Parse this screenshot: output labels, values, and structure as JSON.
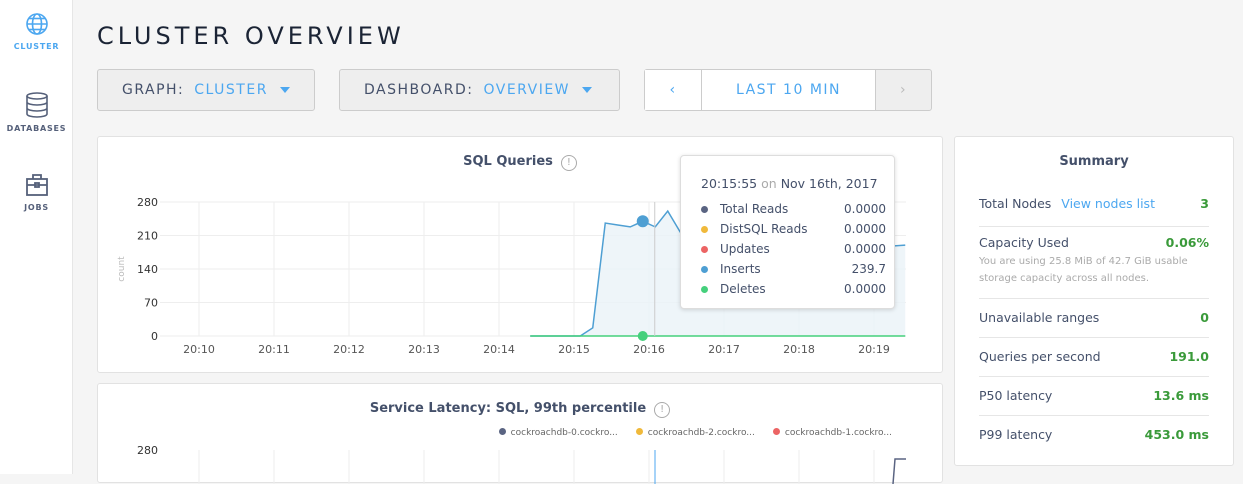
{
  "sidebar": {
    "items": [
      {
        "label": "CLUSTER",
        "icon": "globe-icon",
        "active": true
      },
      {
        "label": "DATABASES",
        "icon": "database-icon"
      },
      {
        "label": "JOBS",
        "icon": "briefcase-icon"
      }
    ]
  },
  "page_title": "CLUSTER OVERVIEW",
  "toolbar": {
    "graph_label": "GRAPH:",
    "graph_value": "CLUSTER",
    "dashboard_label": "DASHBOARD:",
    "dashboard_value": "OVERVIEW",
    "time_range": "LAST 10 MIN",
    "prev_icon": "chevron-left-icon",
    "next_icon": "chevron-right-icon"
  },
  "colors": {
    "accent": "#4ca7f0",
    "total_reads": "#5a6482",
    "distsql_reads": "#f0b93b",
    "updates": "#ec6464",
    "inserts": "#4e9fd3",
    "deletes": "#45d07c",
    "good": "#3a9a3a"
  },
  "chart_data": [
    {
      "type": "area",
      "title": "SQL Queries",
      "ylabel": "count",
      "ylim": [
        0,
        280
      ],
      "yticks": [
        "0",
        "70",
        "140",
        "210",
        "280"
      ],
      "xticks": [
        "20:10",
        "20:11",
        "20:12",
        "20:13",
        "20:14",
        "20:15",
        "20:16",
        "20:17",
        "20:18",
        "20:19"
      ],
      "grid": true,
      "x": [
        "20:14:25",
        "20:14:35",
        "20:14:45",
        "20:14:55",
        "20:15:05",
        "20:15:15",
        "20:15:25",
        "20:15:35",
        "20:15:45",
        "20:15:55",
        "20:16:05",
        "20:16:15",
        "20:16:25",
        "20:16:35",
        "20:16:45",
        "20:16:55",
        "20:17:05",
        "20:17:15",
        "20:17:25",
        "20:17:35",
        "20:17:45",
        "20:17:55",
        "20:18:05",
        "20:18:15",
        "20:18:25",
        "20:18:35",
        "20:18:45",
        "20:18:55",
        "20:19:05",
        "20:19:15",
        "20:19:25"
      ],
      "series": [
        {
          "name": "Inserts",
          "values": [
            0,
            0,
            0,
            0,
            0,
            17,
            236,
            232,
            228,
            239.7,
            228,
            261,
            217,
            200,
            230,
            265,
            240,
            220,
            235,
            250,
            240,
            225,
            245,
            255,
            235,
            230,
            240,
            260,
            225,
            188,
            190
          ]
        },
        {
          "name": "Deletes",
          "values": [
            0,
            0,
            0,
            0,
            0,
            0,
            0,
            0,
            0,
            0,
            0,
            0,
            0,
            0,
            0,
            0,
            0,
            0,
            0,
            0,
            0,
            0,
            0,
            0,
            0,
            0,
            0,
            0,
            0,
            0,
            0
          ]
        }
      ],
      "hover": {
        "time": "20:15:55",
        "date": "Nov 16th, 2017",
        "on": "on",
        "rows": [
          {
            "name": "Total Reads",
            "value": "0.0000"
          },
          {
            "name": "DistSQL Reads",
            "value": "0.0000"
          },
          {
            "name": "Updates",
            "value": "0.0000"
          },
          {
            "name": "Inserts",
            "value": "239.7"
          },
          {
            "name": "Deletes",
            "value": "0.0000"
          }
        ]
      }
    },
    {
      "type": "line",
      "title": "Service Latency: SQL, 99th percentile",
      "yticks": [
        "280"
      ],
      "legend": [
        "cockroachdb-0.cockro...",
        "cockroachdb-2.cockro...",
        "cockroachdb-1.cockro..."
      ],
      "legend_placement": "top-right",
      "grid": true
    }
  ],
  "summary": {
    "title": "Summary",
    "rows": [
      {
        "label": "Total Nodes",
        "link": "View nodes list",
        "value": "3"
      },
      {
        "label": "Capacity Used",
        "value": "0.06%",
        "note": "You are using 25.8 MiB of 42.7 GiB usable storage capacity across all nodes."
      },
      {
        "label": "Unavailable ranges",
        "value": "0"
      },
      {
        "label": "Queries per second",
        "value": "191.0"
      },
      {
        "label": "P50 latency",
        "value": "13.6 ms"
      },
      {
        "label": "P99 latency",
        "value": "453.0 ms"
      }
    ]
  }
}
